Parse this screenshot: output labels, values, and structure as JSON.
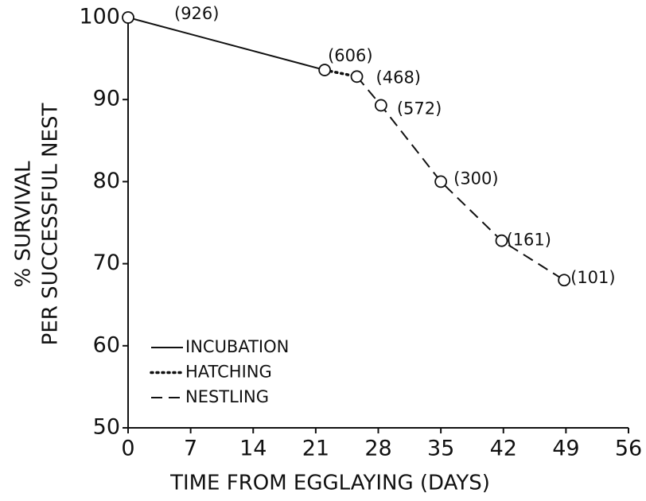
{
  "chart_data": {
    "type": "line",
    "xlabel": "TIME FROM EGGLAYING (DAYS)",
    "ylabel": [
      "% SURVIVAL",
      "PER SUCCESSFUL NEST"
    ],
    "xlim": [
      0,
      56
    ],
    "xticks": [
      0,
      7,
      14,
      21,
      28,
      35,
      42,
      49,
      56
    ],
    "ylim": [
      50,
      100
    ],
    "yticks": [
      50,
      60,
      70,
      80,
      90,
      100
    ],
    "legend": "lower left",
    "series": [
      {
        "name": "INCUBATION",
        "style": "solid",
        "color": "#111111",
        "x": [
          0,
          22
        ],
        "values": [
          100,
          93.6
        ]
      },
      {
        "name": "HATCHING",
        "style": "dotted",
        "color": "#111111",
        "x": [
          22,
          25.6
        ],
        "values": [
          93.6,
          92.8
        ]
      },
      {
        "name": "NESTLING",
        "style": "dashed",
        "color": "#111111",
        "x": [
          25.6,
          28.3,
          35,
          41.8,
          48.8
        ],
        "values": [
          92.8,
          89.3,
          80,
          72.8,
          68
        ]
      }
    ],
    "points": {
      "x": [
        0,
        22,
        25.6,
        28.3,
        35,
        41.8,
        48.8
      ],
      "values": [
        100,
        93.6,
        92.8,
        89.3,
        80,
        72.8,
        68
      ],
      "labels": [
        "(926)",
        "(606)",
        "(468)",
        "(572)",
        "(300)",
        "(161)",
        "(101)"
      ]
    }
  }
}
